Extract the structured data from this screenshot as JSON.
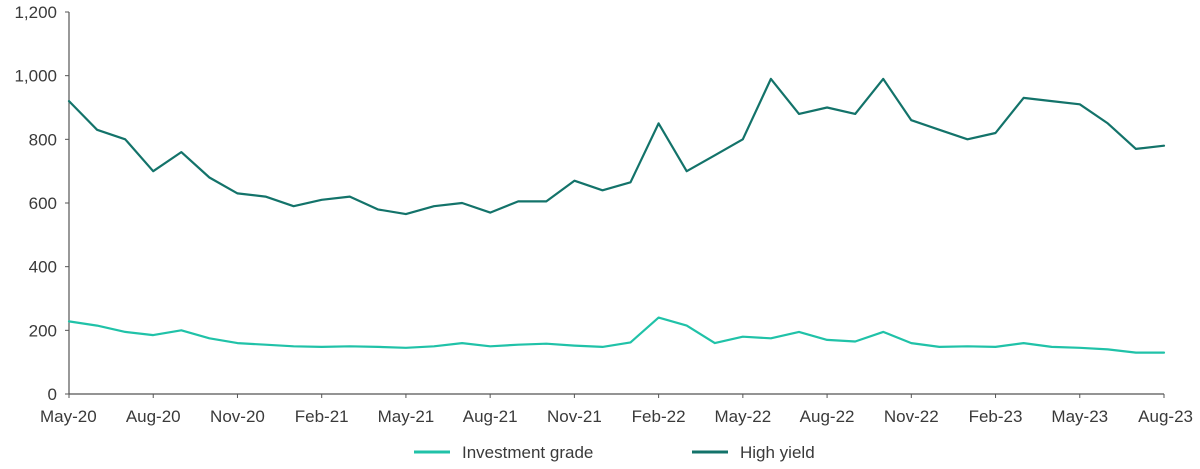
{
  "chart_data": {
    "type": "line",
    "title": "",
    "xlabel": "",
    "ylabel": "",
    "ylim": [
      0,
      1200
    ],
    "yticks": [
      {
        "value": 0,
        "label": "0"
      },
      {
        "value": 200,
        "label": "200"
      },
      {
        "value": 400,
        "label": "400"
      },
      {
        "value": 600,
        "label": "600"
      },
      {
        "value": 800,
        "label": "800"
      },
      {
        "value": 1000,
        "label": "1,000"
      },
      {
        "value": 1200,
        "label": "1,200"
      }
    ],
    "xlim": [
      "2020-05",
      "2023-08"
    ],
    "xticks": [
      "May-20",
      "Aug-20",
      "Nov-20",
      "Feb-21",
      "May-21",
      "Aug-21",
      "Nov-21",
      "Feb-22",
      "May-22",
      "Aug-22",
      "Nov-22",
      "Feb-23",
      "May-23",
      "Aug-23"
    ],
    "grid": false,
    "legend_position": "bottom-center",
    "series": [
      {
        "name": "Investment grade",
        "color": "#20c2a8",
        "x": [
          "2020-05",
          "2020-06",
          "2020-07",
          "2020-08",
          "2020-09",
          "2020-10",
          "2020-11",
          "2020-12",
          "2021-01",
          "2021-02",
          "2021-03",
          "2021-04",
          "2021-05",
          "2021-06",
          "2021-07",
          "2021-08",
          "2021-09",
          "2021-10",
          "2021-11",
          "2021-12",
          "2022-01",
          "2022-02",
          "2022-03",
          "2022-04",
          "2022-05",
          "2022-06",
          "2022-07",
          "2022-08",
          "2022-09",
          "2022-10",
          "2022-11",
          "2022-12",
          "2023-01",
          "2023-02",
          "2023-03",
          "2023-04",
          "2023-05",
          "2023-06",
          "2023-07",
          "2023-08"
        ],
        "values": [
          228,
          215,
          195,
          185,
          200,
          175,
          160,
          155,
          150,
          148,
          150,
          148,
          145,
          150,
          160,
          150,
          155,
          158,
          152,
          148,
          162,
          240,
          215,
          160,
          180,
          175,
          195,
          170,
          165,
          195,
          160,
          148,
          150,
          148,
          160,
          148,
          145,
          140,
          130,
          130
        ]
      },
      {
        "name": "High yield",
        "color": "#13736a",
        "x": [
          "2020-05",
          "2020-06",
          "2020-07",
          "2020-08",
          "2020-09",
          "2020-10",
          "2020-11",
          "2020-12",
          "2021-01",
          "2021-02",
          "2021-03",
          "2021-04",
          "2021-05",
          "2021-06",
          "2021-07",
          "2021-08",
          "2021-09",
          "2021-10",
          "2021-11",
          "2021-12",
          "2022-01",
          "2022-02",
          "2022-03",
          "2022-04",
          "2022-05",
          "2022-06",
          "2022-07",
          "2022-08",
          "2022-09",
          "2022-10",
          "2022-11",
          "2022-12",
          "2023-01",
          "2023-02",
          "2023-03",
          "2023-04",
          "2023-05",
          "2023-06",
          "2023-07",
          "2023-08"
        ],
        "values": [
          920,
          830,
          800,
          700,
          760,
          680,
          630,
          620,
          590,
          610,
          620,
          580,
          565,
          590,
          600,
          570,
          605,
          605,
          670,
          640,
          665,
          850,
          700,
          750,
          800,
          990,
          880,
          900,
          880,
          990,
          860,
          830,
          800,
          820,
          930,
          920,
          910,
          850,
          770,
          780
        ]
      }
    ]
  }
}
